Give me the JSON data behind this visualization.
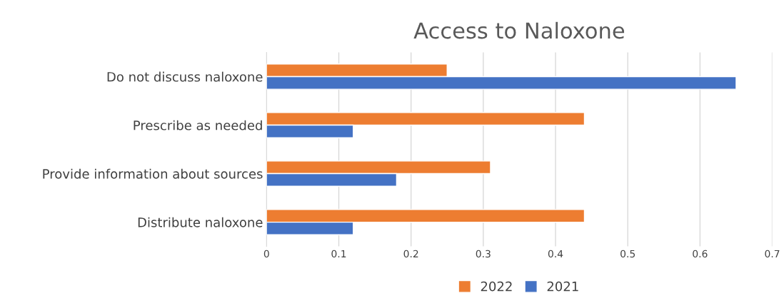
{
  "chart_data": {
    "type": "bar",
    "orientation": "horizontal",
    "title": "Access to Naloxone",
    "categories": [
      "Do not discuss naloxone",
      "Prescribe as needed",
      "Provide information about sources",
      "Distribute naloxone"
    ],
    "series": [
      {
        "name": "2022",
        "color": "#ed7d31",
        "values": [
          0.25,
          0.44,
          0.31,
          0.44
        ]
      },
      {
        "name": "2021",
        "color": "#4472c4",
        "values": [
          0.65,
          0.12,
          0.18,
          0.12
        ]
      }
    ],
    "xlim": [
      0,
      0.7
    ],
    "xticks": [
      0,
      0.1,
      0.2,
      0.3,
      0.4,
      0.5,
      0.6,
      0.7
    ],
    "grid": "x",
    "legend": "bottom"
  }
}
